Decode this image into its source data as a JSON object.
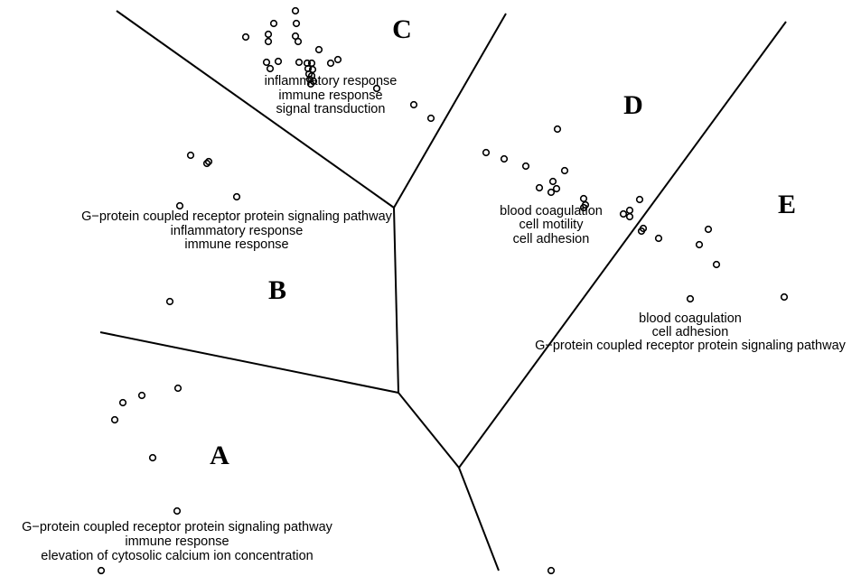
{
  "regions": [
    {
      "letter": "A",
      "terms": [
        "G−protein coupled receptor protein signaling pathway",
        "immune response",
        "elevation of cytosolic calcium ion concentration"
      ]
    },
    {
      "letter": "B",
      "terms": [
        "G−protein coupled receptor protein signaling pathway",
        "inflammatory response",
        "immune response"
      ]
    },
    {
      "letter": "C",
      "terms": [
        "inflammatory response",
        "immune response",
        "signal transduction"
      ]
    },
    {
      "letter": "D",
      "terms": [
        "blood coagulation",
        "cell motility",
        "cell adhesion"
      ]
    },
    {
      "letter": "E",
      "terms": [
        "blood coagulation",
        "cell adhesion",
        "G−protein coupled receptor protein signaling pathway"
      ]
    }
  ]
}
